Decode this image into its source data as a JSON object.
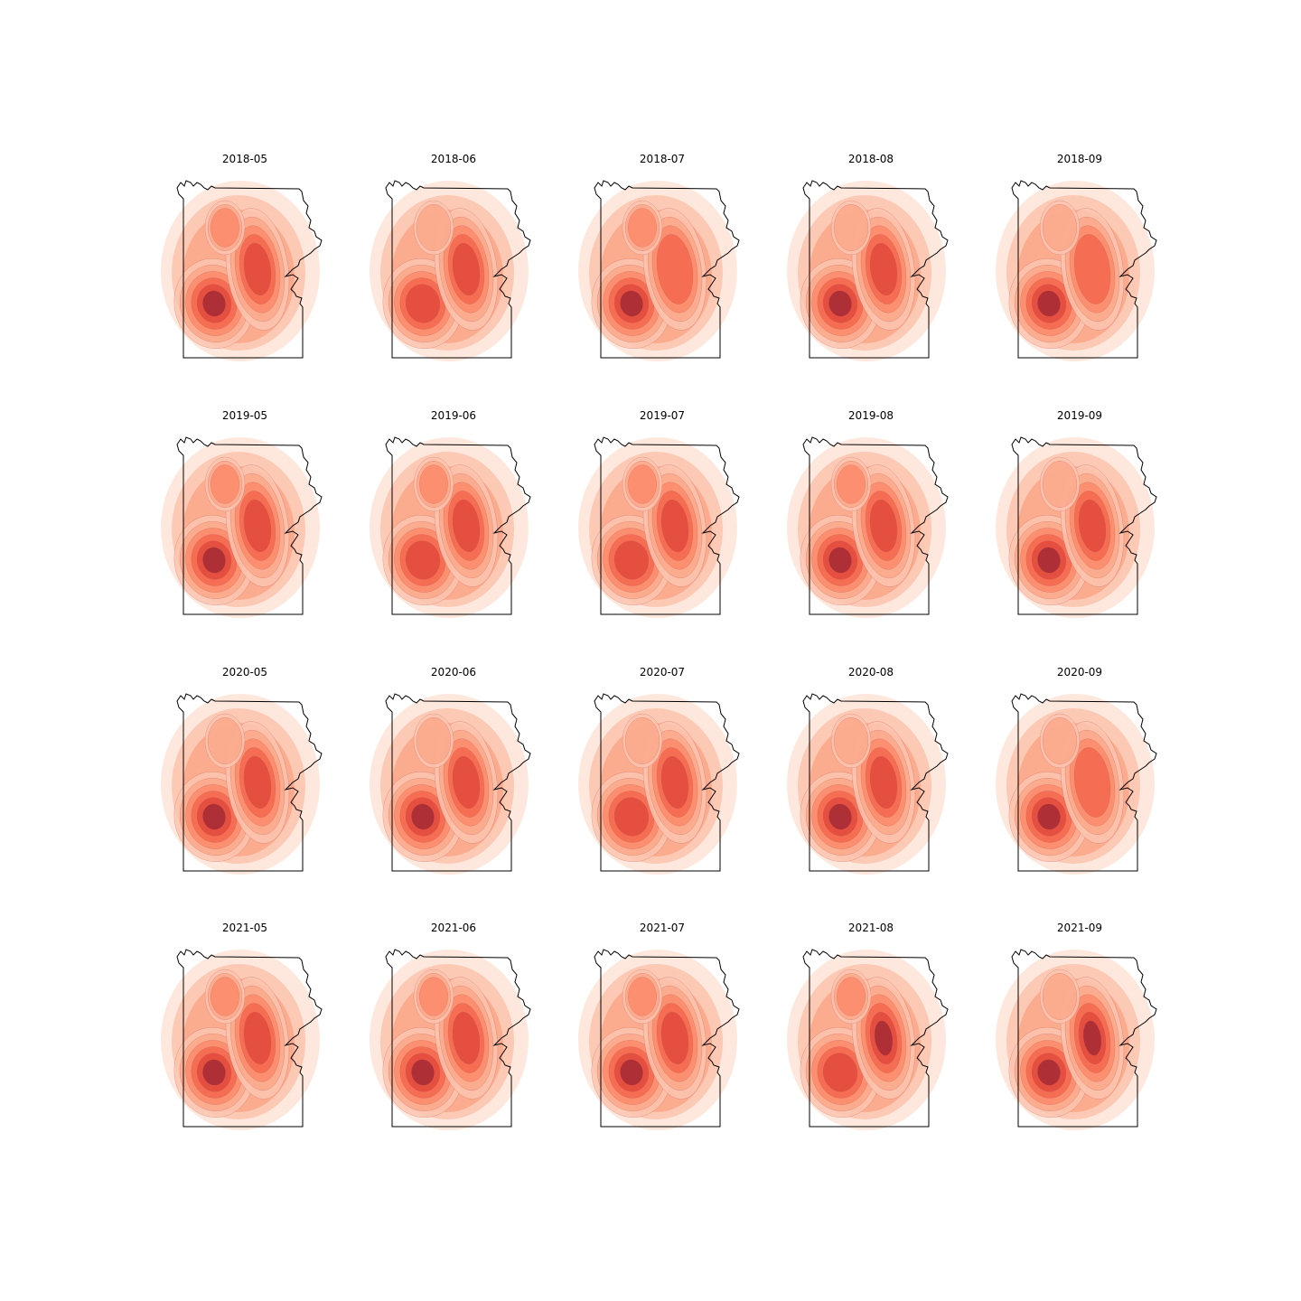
{
  "figure": {
    "panels": [
      {
        "title": "2018-05",
        "hotspots": {
          "southwest": 0.95,
          "east": 0.9,
          "north": 0.45
        }
      },
      {
        "title": "2018-06",
        "hotspots": {
          "southwest": 0.9,
          "east": 0.88,
          "north": 0.4
        }
      },
      {
        "title": "2018-07",
        "hotspots": {
          "southwest": 0.95,
          "east": 0.7,
          "north": 0.45
        }
      },
      {
        "title": "2018-08",
        "hotspots": {
          "southwest": 0.92,
          "east": 0.85,
          "north": 0.4
        }
      },
      {
        "title": "2018-09",
        "hotspots": {
          "southwest": 0.92,
          "east": 0.65,
          "north": 0.35
        }
      },
      {
        "title": "2019-05",
        "hotspots": {
          "southwest": 0.95,
          "east": 0.85,
          "north": 0.45
        }
      },
      {
        "title": "2019-06",
        "hotspots": {
          "southwest": 0.9,
          "east": 0.9,
          "north": 0.5
        }
      },
      {
        "title": "2019-07",
        "hotspots": {
          "southwest": 0.9,
          "east": 0.9,
          "north": 0.45
        }
      },
      {
        "title": "2019-08",
        "hotspots": {
          "southwest": 0.92,
          "east": 0.85,
          "north": 0.45
        }
      },
      {
        "title": "2019-09",
        "hotspots": {
          "southwest": 0.95,
          "east": 0.8,
          "north": 0.4
        }
      },
      {
        "title": "2020-05",
        "hotspots": {
          "southwest": 0.92,
          "east": 0.85,
          "north": 0.4
        }
      },
      {
        "title": "2020-06",
        "hotspots": {
          "southwest": 0.92,
          "east": 0.88,
          "north": 0.4
        }
      },
      {
        "title": "2020-07",
        "hotspots": {
          "southwest": 0.9,
          "east": 0.85,
          "north": 0.4
        }
      },
      {
        "title": "2020-08",
        "hotspots": {
          "southwest": 0.92,
          "east": 0.9,
          "north": 0.4
        }
      },
      {
        "title": "2020-09",
        "hotspots": {
          "southwest": 0.95,
          "east": 0.7,
          "north": 0.35
        }
      },
      {
        "title": "2021-05",
        "hotspots": {
          "southwest": 0.95,
          "east": 0.75,
          "north": 0.55
        }
      },
      {
        "title": "2021-06",
        "hotspots": {
          "southwest": 0.92,
          "east": 0.8,
          "north": 0.5
        }
      },
      {
        "title": "2021-07",
        "hotspots": {
          "southwest": 0.92,
          "east": 0.75,
          "north": 0.45
        }
      },
      {
        "title": "2021-08",
        "hotspots": {
          "southwest": 0.9,
          "east": 0.95,
          "north": 0.45
        }
      },
      {
        "title": "2021-09",
        "hotspots": {
          "southwest": 0.95,
          "east": 0.95,
          "north": 0.4
        }
      }
    ],
    "colors": {
      "levels": [
        "#fee5d9",
        "#fcc5b0",
        "#fca98a",
        "#fb8a6a",
        "#f4694f",
        "#e34a3d",
        "#a52a34"
      ],
      "outline": "#000000"
    }
  }
}
